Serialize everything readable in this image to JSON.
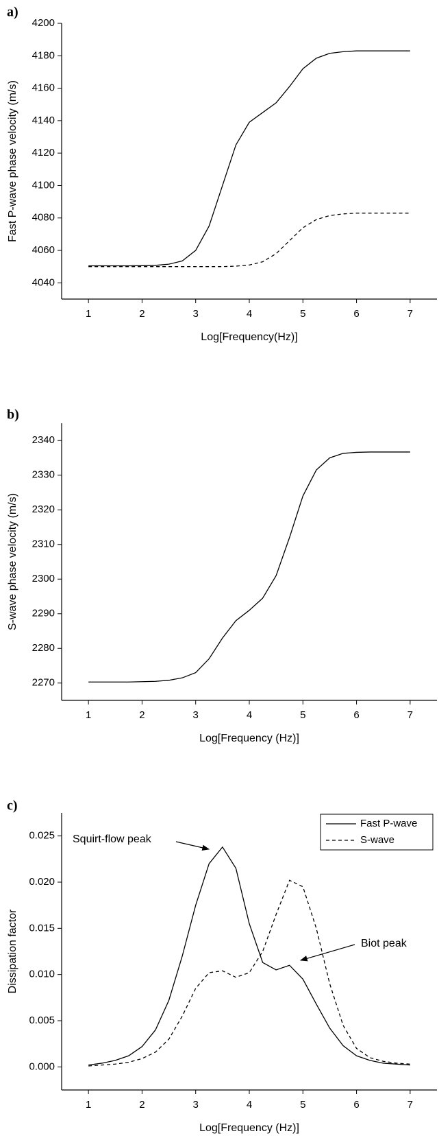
{
  "chart_data": [
    {
      "type": "line",
      "label": "a)",
      "xlabel": "Log[Frequency(Hz)]",
      "ylabel": "Fast P-wave phase velocity (m/s)",
      "x": [
        1,
        1.25,
        1.5,
        1.75,
        2,
        2.25,
        2.5,
        2.75,
        3,
        3.25,
        3.5,
        3.75,
        4,
        4.25,
        4.5,
        4.75,
        5,
        5.25,
        5.5,
        5.75,
        6,
        6.25,
        6.5,
        6.75,
        7
      ],
      "xlim": [
        0.5,
        7.5
      ],
      "xticks": [
        1,
        2,
        3,
        4,
        5,
        6,
        7
      ],
      "ylim": [
        4030,
        4200
      ],
      "yticks": [
        4040,
        4060,
        4080,
        4100,
        4120,
        4140,
        4160,
        4180,
        4200
      ],
      "series": [
        {
          "color": "#000000",
          "line_style": "solid",
          "values": [
            4050.5,
            4050.5,
            4050.5,
            4050.5,
            4050.6,
            4050.8,
            4051.5,
            4053.5,
            4060,
            4075,
            4100,
            4125,
            4139,
            4145,
            4151,
            4161,
            4172,
            4178.5,
            4181.5,
            4182.5,
            4183,
            4183,
            4183,
            4183,
            4183
          ]
        },
        {
          "color": "#000000",
          "line_style": "dashed",
          "values": [
            4050,
            4050,
            4050,
            4050,
            4050,
            4050,
            4050,
            4050,
            4050,
            4050,
            4050,
            4050.3,
            4051,
            4053,
            4058,
            4066,
            4074,
            4079,
            4081.5,
            4082.5,
            4083,
            4083,
            4083,
            4083,
            4083
          ]
        }
      ]
    },
    {
      "type": "line",
      "label": "b)",
      "xlabel": "Log[Frequency (Hz)]",
      "ylabel": "S-wave phase velocity (m/s)",
      "x": [
        1,
        1.25,
        1.5,
        1.75,
        2,
        2.25,
        2.5,
        2.75,
        3,
        3.25,
        3.5,
        3.75,
        4,
        4.25,
        4.5,
        4.75,
        5,
        5.25,
        5.5,
        5.75,
        6,
        6.25,
        6.5,
        6.75,
        7
      ],
      "xlim": [
        0.5,
        7.5
      ],
      "xticks": [
        1,
        2,
        3,
        4,
        5,
        6,
        7
      ],
      "ylim": [
        2265,
        2345
      ],
      "yticks": [
        2270,
        2280,
        2290,
        2300,
        2310,
        2320,
        2330,
        2340
      ],
      "series": [
        {
          "color": "#000000",
          "line_style": "solid",
          "values": [
            2270.3,
            2270.3,
            2270.3,
            2270.3,
            2270.4,
            2270.5,
            2270.8,
            2271.5,
            2273,
            2277,
            2283,
            2288,
            2291,
            2294.5,
            2301,
            2312,
            2324,
            2331.5,
            2335,
            2336.3,
            2336.6,
            2336.7,
            2336.7,
            2336.7,
            2336.7
          ]
        }
      ]
    },
    {
      "type": "line",
      "label": "c)",
      "xlabel": "Log[Frequency (Hz)]",
      "ylabel": "Dissipation factor",
      "x": [
        1,
        1.25,
        1.5,
        1.75,
        2,
        2.25,
        2.5,
        2.75,
        3,
        3.25,
        3.5,
        3.75,
        4,
        4.25,
        4.5,
        4.75,
        5,
        5.25,
        5.5,
        5.75,
        6,
        6.25,
        6.5,
        6.75,
        7
      ],
      "xlim": [
        0.5,
        7.5
      ],
      "xticks": [
        1,
        2,
        3,
        4,
        5,
        6,
        7
      ],
      "ylim": [
        -0.0025,
        0.0275
      ],
      "yticks": [
        {
          "value": 0,
          "label": "0.000"
        },
        {
          "value": 0.005,
          "label": "0.005"
        },
        {
          "value": 0.01,
          "label": "0.010"
        },
        {
          "value": 0.015,
          "label": "0.015"
        },
        {
          "value": 0.02,
          "label": "0.020"
        },
        {
          "value": 0.025,
          "label": "0.025"
        }
      ],
      "legend": "upper right",
      "annotations": [
        "Squirt-flow peak",
        "Biot peak"
      ],
      "series": [
        {
          "name": "Fast P-wave",
          "color": "#000000",
          "line_style": "solid",
          "values": [
            0.0002,
            0.0004,
            0.0007,
            0.0012,
            0.0022,
            0.004,
            0.0072,
            0.012,
            0.0175,
            0.022,
            0.0238,
            0.0215,
            0.0155,
            0.0113,
            0.0105,
            0.011,
            0.0095,
            0.0068,
            0.0042,
            0.0023,
            0.0012,
            0.0007,
            0.0004,
            0.0003,
            0.0002
          ]
        },
        {
          "name": "S-wave",
          "color": "#000000",
          "line_style": "dashed",
          "values": [
            0.0001,
            0.0002,
            0.0003,
            0.0005,
            0.0009,
            0.0016,
            0.003,
            0.0055,
            0.0085,
            0.0102,
            0.0104,
            0.0097,
            0.0102,
            0.0125,
            0.0165,
            0.0202,
            0.0195,
            0.015,
            0.009,
            0.0045,
            0.002,
            0.001,
            0.0006,
            0.0004,
            0.0003
          ]
        }
      ]
    }
  ]
}
